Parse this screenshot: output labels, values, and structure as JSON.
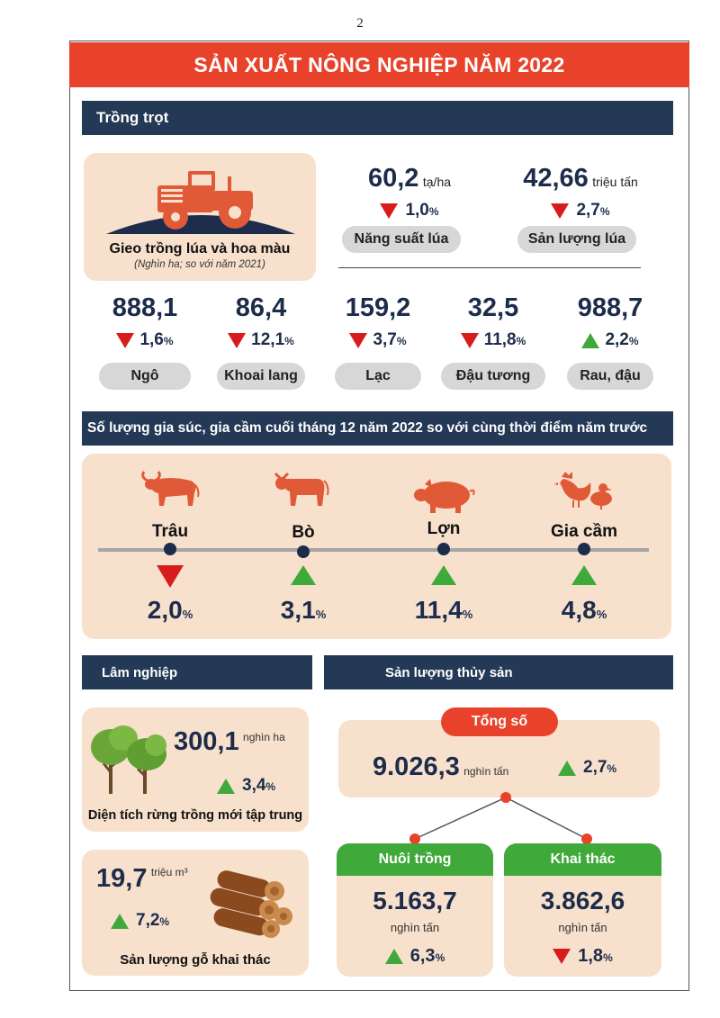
{
  "page_number": "2",
  "banner_title": "SẢN XUẤT NÔNG NGHIỆP NĂM 2022",
  "crops_section": {
    "title": "Trồng trọt",
    "sowing_card": {
      "title": "Gieo trồng lúa và hoa màu",
      "subtitle": "(Nghìn ha; so với năm 2021)"
    },
    "rice_yield": {
      "value": "60,2",
      "unit": "tạ/ha",
      "change": "1,0",
      "direction": "down",
      "label": "Năng suất lúa"
    },
    "rice_output": {
      "value": "42,66",
      "unit": "triệu tấn",
      "change": "2,7",
      "direction": "down",
      "label": "Sản lượng lúa"
    },
    "items": [
      {
        "value": "888,1",
        "change": "1,6",
        "direction": "down",
        "label": "Ngô"
      },
      {
        "value": "86,4",
        "change": "12,1",
        "direction": "down",
        "label": "Khoai lang"
      },
      {
        "value": "159,2",
        "change": "3,7",
        "direction": "down",
        "label": "Lạc"
      },
      {
        "value": "32,5",
        "change": "11,8",
        "direction": "down",
        "label": "Đậu tương"
      },
      {
        "value": "988,7",
        "change": "2,2",
        "direction": "up",
        "label": "Rau, đậu"
      }
    ],
    "pct_symbol": "%"
  },
  "livestock_section": {
    "title": "Số lượng gia súc, gia cầm cuối tháng 12 năm 2022 so với cùng thời điểm năm trước",
    "items": [
      {
        "name": "Trâu",
        "change": "2,0",
        "direction": "down",
        "icon": "buffalo-icon"
      },
      {
        "name": "Bò",
        "change": "3,1",
        "direction": "up",
        "icon": "cow-icon"
      },
      {
        "name": "Lợn",
        "change": "11,4",
        "direction": "up",
        "icon": "pig-icon"
      },
      {
        "name": "Gia cầm",
        "change": "4,8",
        "direction": "up",
        "icon": "poultry-icon"
      }
    ]
  },
  "forestry_section": {
    "title": "Lâm nghiệp",
    "forest_area": {
      "value": "300,1",
      "unit": "nghìn ha",
      "change": "3,4",
      "direction": "up",
      "label": "Diện tích rừng trồng mới tập trung"
    },
    "timber": {
      "value": "19,7",
      "unit": "triệu m³",
      "change": "7,2",
      "direction": "up",
      "label": "Sản lượng gỗ khai thác"
    }
  },
  "fishery_section": {
    "title": "Sản lượng thủy sản",
    "total": {
      "label": "Tổng số",
      "value": "9.026,3",
      "unit": "nghìn tấn",
      "change": "2,7",
      "direction": "up"
    },
    "aquaculture": {
      "label": "Nuôi trồng",
      "value": "5.163,7",
      "unit": "nghìn tấn",
      "change": "6,3",
      "direction": "up"
    },
    "capture": {
      "label": "Khai thác",
      "value": "3.862,6",
      "unit": "nghìn tấn",
      "change": "1,8",
      "direction": "down"
    }
  },
  "colors": {
    "banner_red": "#e8422a",
    "navy": "#243956",
    "card_beige": "#f7e0cc",
    "down_red": "#d81c1c",
    "up_green": "#3fa93a",
    "icon_orange": "#e05a38"
  }
}
